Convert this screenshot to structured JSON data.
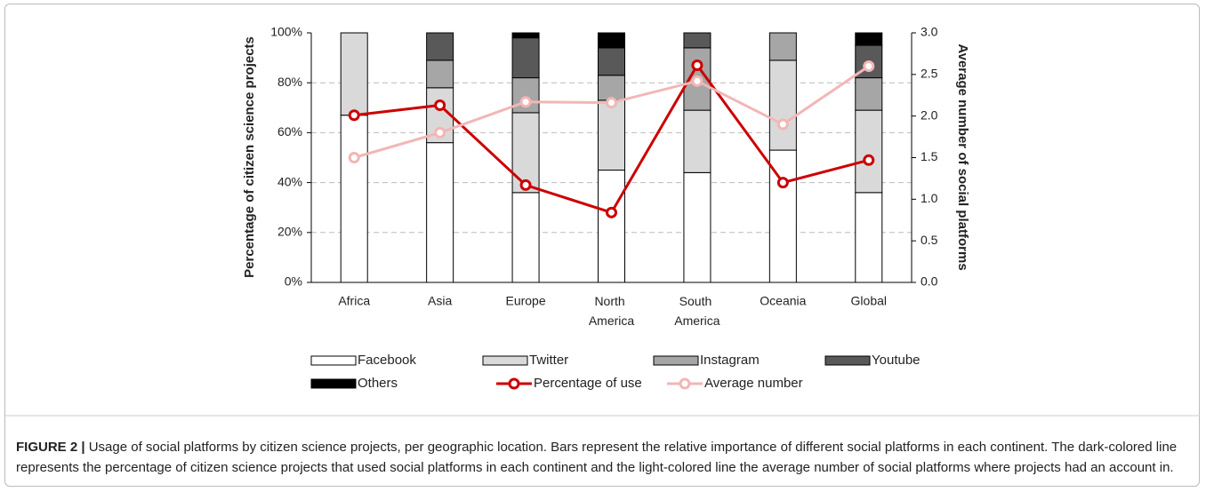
{
  "chart_data": {
    "type": "bar",
    "categories": [
      "Africa",
      "Asia",
      "Europe",
      "North America",
      "South America",
      "Oceania",
      "Global"
    ],
    "series": [
      {
        "name": "Facebook",
        "color": "#ffffff",
        "values": [
          67,
          56,
          36,
          45,
          44,
          53,
          36
        ]
      },
      {
        "name": "Twitter",
        "color": "#d9d9d9",
        "values": [
          33,
          22,
          32,
          28,
          25,
          36,
          33
        ]
      },
      {
        "name": "Instagram",
        "color": "#a6a6a6",
        "values": [
          0,
          11,
          14,
          10,
          25,
          11,
          13
        ]
      },
      {
        "name": "Youtube",
        "color": "#595959",
        "values": [
          0,
          11,
          16,
          11,
          6,
          0,
          13
        ]
      },
      {
        "name": "Others",
        "color": "#000000",
        "values": [
          0,
          0,
          2,
          6,
          0,
          0,
          5
        ]
      },
      {
        "name": "Percentage of use",
        "type": "line",
        "color": "#cc0000",
        "values": [
          67,
          71,
          39,
          28,
          87,
          40,
          49
        ]
      },
      {
        "name": "Average number",
        "type": "line",
        "axis": "y2",
        "color": "#f2b6b6",
        "values": [
          1.5,
          1.8,
          2.17,
          2.16,
          2.42,
          1.9,
          2.6
        ]
      }
    ],
    "ylabel": "Percentage of citizen science projects",
    "y2label": "Average number of social platforms",
    "ylim": [
      0,
      100
    ],
    "yticks": [
      {
        "value": 0,
        "label": "0%"
      },
      {
        "value": 20,
        "label": "20%"
      },
      {
        "value": 40,
        "label": "40%"
      },
      {
        "value": 60,
        "label": "60%"
      },
      {
        "value": 80,
        "label": "80%"
      },
      {
        "value": 100,
        "label": "100%"
      }
    ],
    "y2lim": [
      0,
      3
    ],
    "y2ticks": [
      {
        "value": 0,
        "label": "0.0"
      },
      {
        "value": 0.5,
        "label": "0.5"
      },
      {
        "value": 1,
        "label": "1.0"
      },
      {
        "value": 1.5,
        "label": "1.5"
      },
      {
        "value": 2,
        "label": "2.0"
      },
      {
        "value": 2.5,
        "label": "2.5"
      },
      {
        "value": 3,
        "label": "3.0"
      }
    ],
    "grid": true,
    "legend": "bottom",
    "caption_label": "FIGURE 2 |",
    "caption": "Usage of social platforms by citizen science projects, per geographic location. Bars represent the relative importance of different social platforms in each continent. The dark-colored line represents the percentage of citizen science projects that used social platforms in each continent and the light-colored line the average number of social platforms where projects had an account in."
  }
}
